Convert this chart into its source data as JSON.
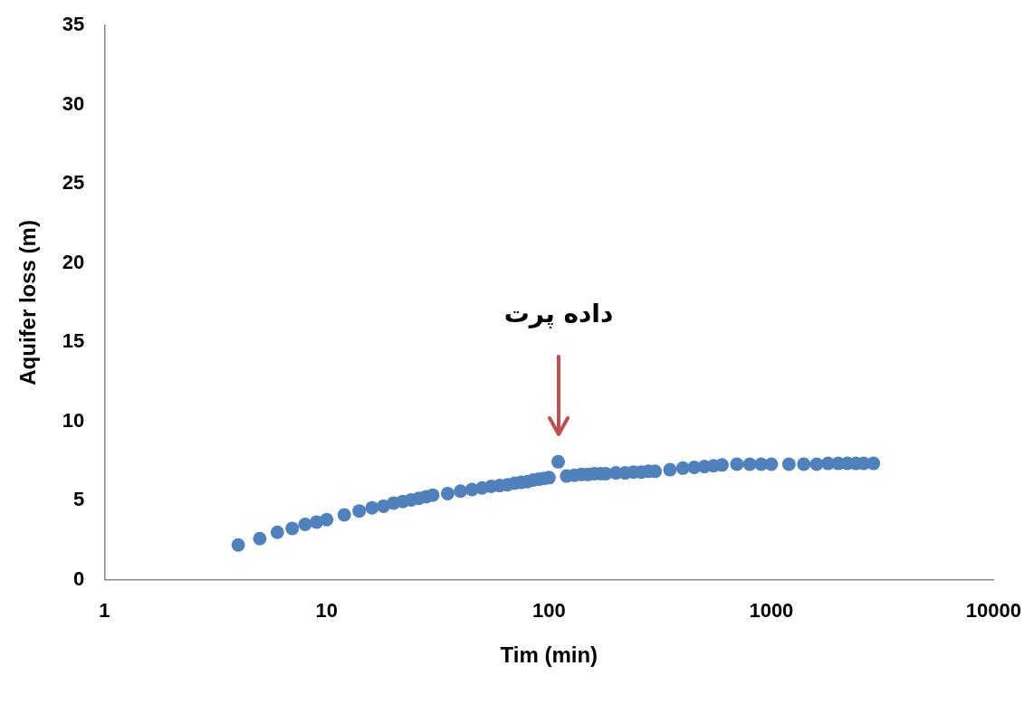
{
  "chart_data": {
    "type": "scatter",
    "xlabel": "Tim (min)",
    "ylabel": "Aquifer loss (m)",
    "x": [
      4,
      5,
      6,
      7,
      8,
      9,
      10,
      12,
      14,
      16,
      18,
      20,
      22,
      24,
      26,
      28,
      30,
      35,
      40,
      45,
      50,
      55,
      60,
      65,
      70,
      75,
      80,
      85,
      90,
      95,
      100,
      110,
      120,
      130,
      140,
      150,
      160,
      170,
      180,
      200,
      220,
      240,
      260,
      280,
      300,
      350,
      400,
      450,
      500,
      550,
      600,
      700,
      800,
      900,
      1000,
      1200,
      1400,
      1600,
      1800,
      2000,
      2200,
      2400,
      2600,
      2880
    ],
    "series": [
      {
        "color": "#4f81bd",
        "values": [
          2.2,
          2.6,
          3.0,
          3.25,
          3.5,
          3.65,
          3.8,
          4.1,
          4.35,
          4.55,
          4.65,
          4.85,
          4.95,
          5.05,
          5.15,
          5.25,
          5.35,
          5.45,
          5.6,
          5.7,
          5.8,
          5.9,
          5.95,
          6.0,
          6.1,
          6.15,
          6.2,
          6.3,
          6.35,
          6.4,
          6.45,
          7.45,
          6.55,
          6.6,
          6.65,
          6.65,
          6.7,
          6.7,
          6.7,
          6.75,
          6.75,
          6.8,
          6.8,
          6.85,
          6.85,
          6.95,
          7.05,
          7.1,
          7.15,
          7.2,
          7.25,
          7.3,
          7.3,
          7.3,
          7.3,
          7.3,
          7.3,
          7.3,
          7.35,
          7.35,
          7.35,
          7.35,
          7.35,
          7.35
        ]
      }
    ],
    "log": "x",
    "xlim": [
      1,
      10000
    ],
    "xticks": [
      1,
      10,
      100,
      1000,
      10000
    ],
    "ylim": [
      0,
      35
    ],
    "yticks": [
      0,
      5,
      10,
      15,
      20,
      25,
      30,
      35
    ],
    "grid": false,
    "legend": false,
    "marker": "circle",
    "annotations": [
      "داده پرت"
    ]
  }
}
